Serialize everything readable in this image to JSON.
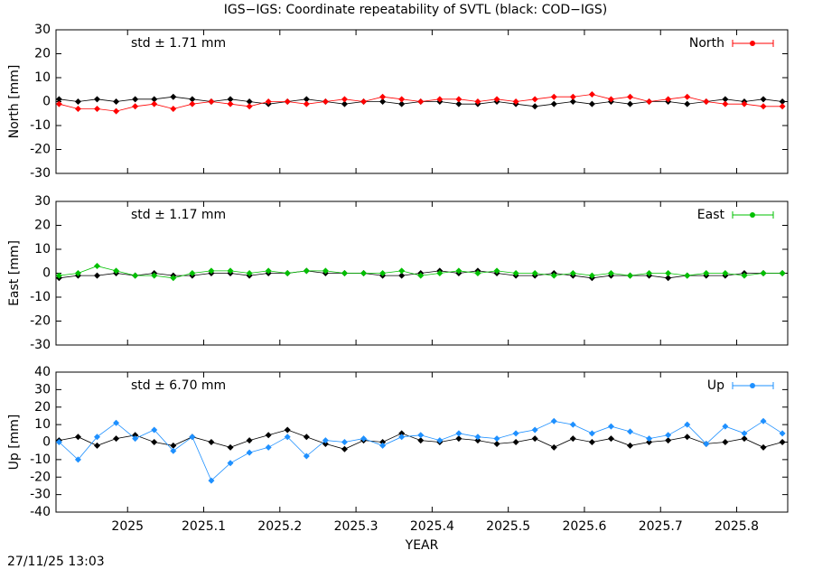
{
  "title": "IGS−IGS: Coordinate repeatability of SVTL (black: COD−IGS)",
  "timestamp": "27/11/25 13:03",
  "chart_data": [
    {
      "type": "line",
      "ylabel": "North [mm]",
      "annotation": "std ± 1.71 mm",
      "x": [
        2024.91,
        2024.935,
        2024.96,
        2024.985,
        2025.01,
        2025.035,
        2025.06,
        2025.085,
        2025.11,
        2025.135,
        2025.16,
        2025.185,
        2025.21,
        2025.235,
        2025.26,
        2025.285,
        2025.31,
        2025.335,
        2025.36,
        2025.385,
        2025.41,
        2025.435,
        2025.46,
        2025.485,
        2025.51,
        2025.535,
        2025.56,
        2025.585,
        2025.61,
        2025.635,
        2025.66,
        2025.685,
        2025.71,
        2025.735,
        2025.76,
        2025.785,
        2025.81,
        2025.835,
        2025.86
      ],
      "series": [
        {
          "color": "#000000",
          "values": [
            1,
            0,
            1,
            0,
            1,
            1,
            2,
            1,
            0,
            1,
            0,
            -1,
            0,
            1,
            0,
            -1,
            0,
            0,
            -1,
            0,
            0,
            -1,
            -1,
            0,
            -1,
            -2,
            -1,
            0,
            -1,
            0,
            -1,
            0,
            0,
            -1,
            0,
            1,
            0,
            1,
            0
          ]
        },
        {
          "name": "North",
          "color": "#ff0000",
          "values": [
            -1,
            -3,
            -3,
            -4,
            -2,
            -1,
            -3,
            -1,
            0,
            -1,
            -2,
            0,
            0,
            -1,
            0,
            1,
            0,
            2,
            1,
            0,
            1,
            1,
            0,
            1,
            0,
            1,
            2,
            2,
            3,
            1,
            2,
            0,
            1,
            2,
            0,
            -1,
            -1,
            -2,
            -2
          ]
        }
      ],
      "xlim": [
        2024.906,
        2025.867
      ],
      "ylim": [
        -30,
        30
      ],
      "yticks": [
        -30,
        -20,
        -10,
        0,
        10,
        20,
        30
      ]
    },
    {
      "type": "line",
      "ylabel": "East [mm]",
      "annotation": "std ± 1.17 mm",
      "x": [
        2024.91,
        2024.935,
        2024.96,
        2024.985,
        2025.01,
        2025.035,
        2025.06,
        2025.085,
        2025.11,
        2025.135,
        2025.16,
        2025.185,
        2025.21,
        2025.235,
        2025.26,
        2025.285,
        2025.31,
        2025.335,
        2025.36,
        2025.385,
        2025.41,
        2025.435,
        2025.46,
        2025.485,
        2025.51,
        2025.535,
        2025.56,
        2025.585,
        2025.61,
        2025.635,
        2025.66,
        2025.685,
        2025.71,
        2025.735,
        2025.76,
        2025.785,
        2025.81,
        2025.835,
        2025.86
      ],
      "series": [
        {
          "color": "#000000",
          "values": [
            -2,
            -1,
            -1,
            0,
            -1,
            0,
            -1,
            -1,
            0,
            0,
            -1,
            0,
            0,
            1,
            0,
            0,
            0,
            -1,
            -1,
            0,
            1,
            0,
            1,
            0,
            -1,
            -1,
            0,
            -1,
            -2,
            -1,
            -1,
            -1,
            -2,
            -1,
            -1,
            -1,
            0,
            0,
            0
          ]
        },
        {
          "name": "East",
          "color": "#00c000",
          "values": [
            -1,
            0,
            3,
            1,
            -1,
            -1,
            -2,
            0,
            1,
            1,
            0,
            1,
            0,
            1,
            1,
            0,
            0,
            0,
            1,
            -1,
            0,
            1,
            0,
            1,
            0,
            0,
            -1,
            0,
            -1,
            0,
            -1,
            0,
            0,
            -1,
            0,
            0,
            -1,
            0,
            0
          ]
        }
      ],
      "xlim": [
        2024.906,
        2025.867
      ],
      "ylim": [
        -30,
        30
      ],
      "yticks": [
        -30,
        -20,
        -10,
        0,
        10,
        20,
        30
      ]
    },
    {
      "type": "line",
      "ylabel": "Up [mm]",
      "xlabel": "YEAR",
      "annotation": "std ± 6.70 mm",
      "x": [
        2024.91,
        2024.935,
        2024.96,
        2024.985,
        2025.01,
        2025.035,
        2025.06,
        2025.085,
        2025.11,
        2025.135,
        2025.16,
        2025.185,
        2025.21,
        2025.235,
        2025.26,
        2025.285,
        2025.31,
        2025.335,
        2025.36,
        2025.385,
        2025.41,
        2025.435,
        2025.46,
        2025.485,
        2025.51,
        2025.535,
        2025.56,
        2025.585,
        2025.61,
        2025.635,
        2025.66,
        2025.685,
        2025.71,
        2025.735,
        2025.76,
        2025.785,
        2025.81,
        2025.835,
        2025.86
      ],
      "series": [
        {
          "color": "#000000",
          "values": [
            1,
            3,
            -2,
            2,
            4,
            0,
            -2,
            3,
            0,
            -3,
            1,
            4,
            7,
            3,
            -1,
            -4,
            1,
            0,
            5,
            1,
            0,
            2,
            1,
            -1,
            0,
            2,
            -3,
            2,
            0,
            2,
            -2,
            0,
            1,
            3,
            -1,
            0,
            2,
            -3,
            0
          ]
        },
        {
          "name": "Up",
          "color": "#1e90ff",
          "values": [
            0,
            -10,
            3,
            11,
            2,
            7,
            -5,
            3,
            -22,
            -12,
            -6,
            -3,
            3,
            -8,
            1,
            0,
            2,
            -2,
            3,
            4,
            1,
            5,
            3,
            2,
            5,
            7,
            12,
            10,
            5,
            9,
            6,
            2,
            4,
            10,
            -1,
            9,
            5,
            12,
            5
          ]
        }
      ],
      "xlim": [
        2024.906,
        2025.867
      ],
      "ylim": [
        -40,
        40
      ],
      "yticks": [
        -40,
        -30,
        -20,
        -10,
        0,
        10,
        20,
        30,
        40
      ],
      "xticks": [
        2025,
        2025.1,
        2025.2,
        2025.3,
        2025.4,
        2025.5,
        2025.6,
        2025.7,
        2025.8
      ]
    }
  ]
}
